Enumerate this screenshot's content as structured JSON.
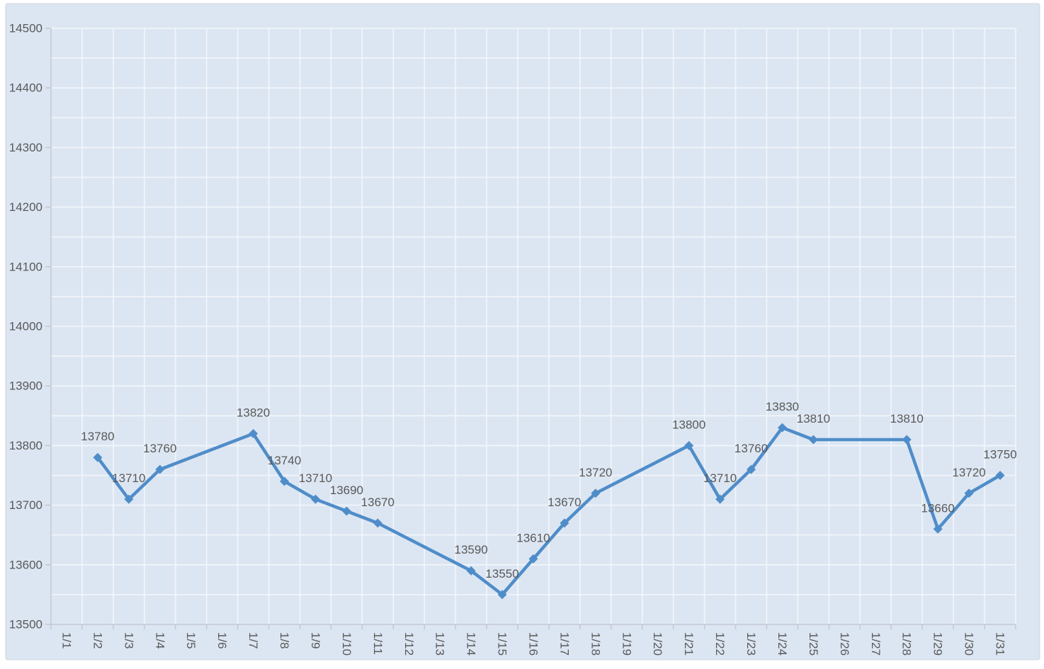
{
  "chart_data": {
    "type": "line",
    "title": "",
    "xlabel": "",
    "ylabel": "",
    "categories": [
      "1/1",
      "1/2",
      "1/3",
      "1/4",
      "1/5",
      "1/6",
      "1/7",
      "1/8",
      "1/9",
      "1/10",
      "1/11",
      "1/12",
      "1/13",
      "1/14",
      "1/15",
      "1/16",
      "1/17",
      "1/18",
      "1/19",
      "1/20",
      "1/21",
      "1/22",
      "1/23",
      "1/24",
      "1/25",
      "1/26",
      "1/27",
      "1/28",
      "1/29",
      "1/30",
      "1/31"
    ],
    "series": [
      {
        "name": "",
        "values": [
          null,
          13780,
          13710,
          13760,
          null,
          null,
          13820,
          13740,
          13710,
          13690,
          13670,
          null,
          null,
          13590,
          13550,
          13610,
          13670,
          13720,
          null,
          null,
          13800,
          13710,
          13760,
          13830,
          13810,
          null,
          null,
          13810,
          13660,
          13720,
          13750
        ]
      }
    ],
    "ylim": [
      13500,
      14500
    ],
    "y_major_step": 100,
    "y_minor_step": 50,
    "grid": true,
    "legend_position": "none",
    "marker": "diamond",
    "data_labels_position": "above",
    "x_tick_rotation_deg": 90
  },
  "style": {
    "page_background": "#ffffff",
    "chart_background": "#dce6f2",
    "chart_border_color": "#d0d5dc",
    "gridline_color": "#f3f6fb",
    "axis_line_color": "#c3c8d2",
    "tick_color": "#c3c8d2",
    "label_color": "#595959",
    "series_color": "#4f8dc9"
  }
}
